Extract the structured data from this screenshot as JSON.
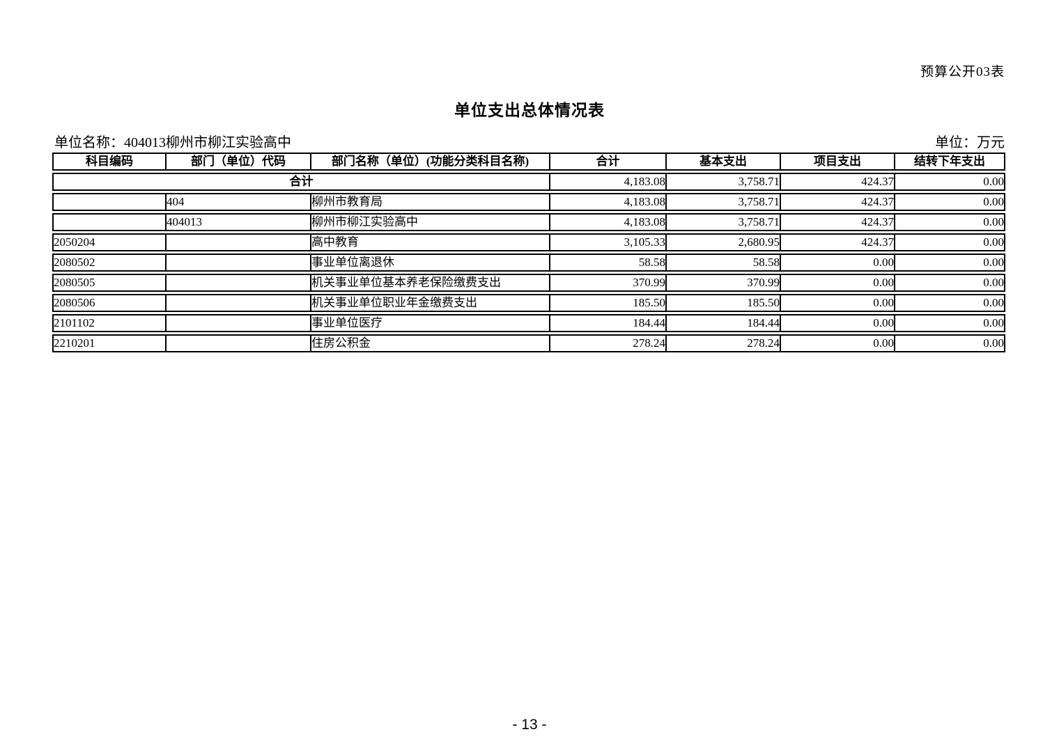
{
  "page": {
    "form_label": "预算公开03表",
    "title": "单位支出总体情况表",
    "unit_name": "单位名称：404013柳州市柳江实验高中",
    "unit_measure": "单位：万元",
    "page_number": "- 13 -"
  },
  "table": {
    "headers": [
      "科目编码",
      "部门（单位）代码",
      "部门名称（单位）(功能分类科目名称)",
      "合计",
      "基本支出",
      "项目支出",
      "结转下年支出"
    ],
    "total_row": {
      "label": "合计",
      "values": [
        "4,183.08",
        "3,758.71",
        "424.37",
        "0.00"
      ]
    },
    "rows": [
      {
        "subject_code": "",
        "dept_code": "404",
        "name": "柳州市教育局",
        "total": "4,183.08",
        "basic": "3,758.71",
        "project": "424.37",
        "carryover": "0.00"
      },
      {
        "subject_code": "",
        "dept_code": "404013",
        "name": "柳州市柳江实验高中",
        "total": "4,183.08",
        "basic": "3,758.71",
        "project": "424.37",
        "carryover": "0.00"
      },
      {
        "subject_code": "2050204",
        "dept_code": "",
        "name": "高中教育",
        "total": "3,105.33",
        "basic": "2,680.95",
        "project": "424.37",
        "carryover": "0.00"
      },
      {
        "subject_code": "2080502",
        "dept_code": "",
        "name": "事业单位离退休",
        "total": "58.58",
        "basic": "58.58",
        "project": "0.00",
        "carryover": "0.00"
      },
      {
        "subject_code": "2080505",
        "dept_code": "",
        "name": "机关事业单位基本养老保险缴费支出",
        "total": "370.99",
        "basic": "370.99",
        "project": "0.00",
        "carryover": "0.00"
      },
      {
        "subject_code": "2080506",
        "dept_code": "",
        "name": "机关事业单位职业年金缴费支出",
        "total": "185.50",
        "basic": "185.50",
        "project": "0.00",
        "carryover": "0.00"
      },
      {
        "subject_code": "2101102",
        "dept_code": "",
        "name": "事业单位医疗",
        "total": "184.44",
        "basic": "184.44",
        "project": "0.00",
        "carryover": "0.00"
      },
      {
        "subject_code": "2210201",
        "dept_code": "",
        "name": "住房公积金",
        "total": "278.24",
        "basic": "278.24",
        "project": "0.00",
        "carryover": "0.00"
      }
    ]
  }
}
